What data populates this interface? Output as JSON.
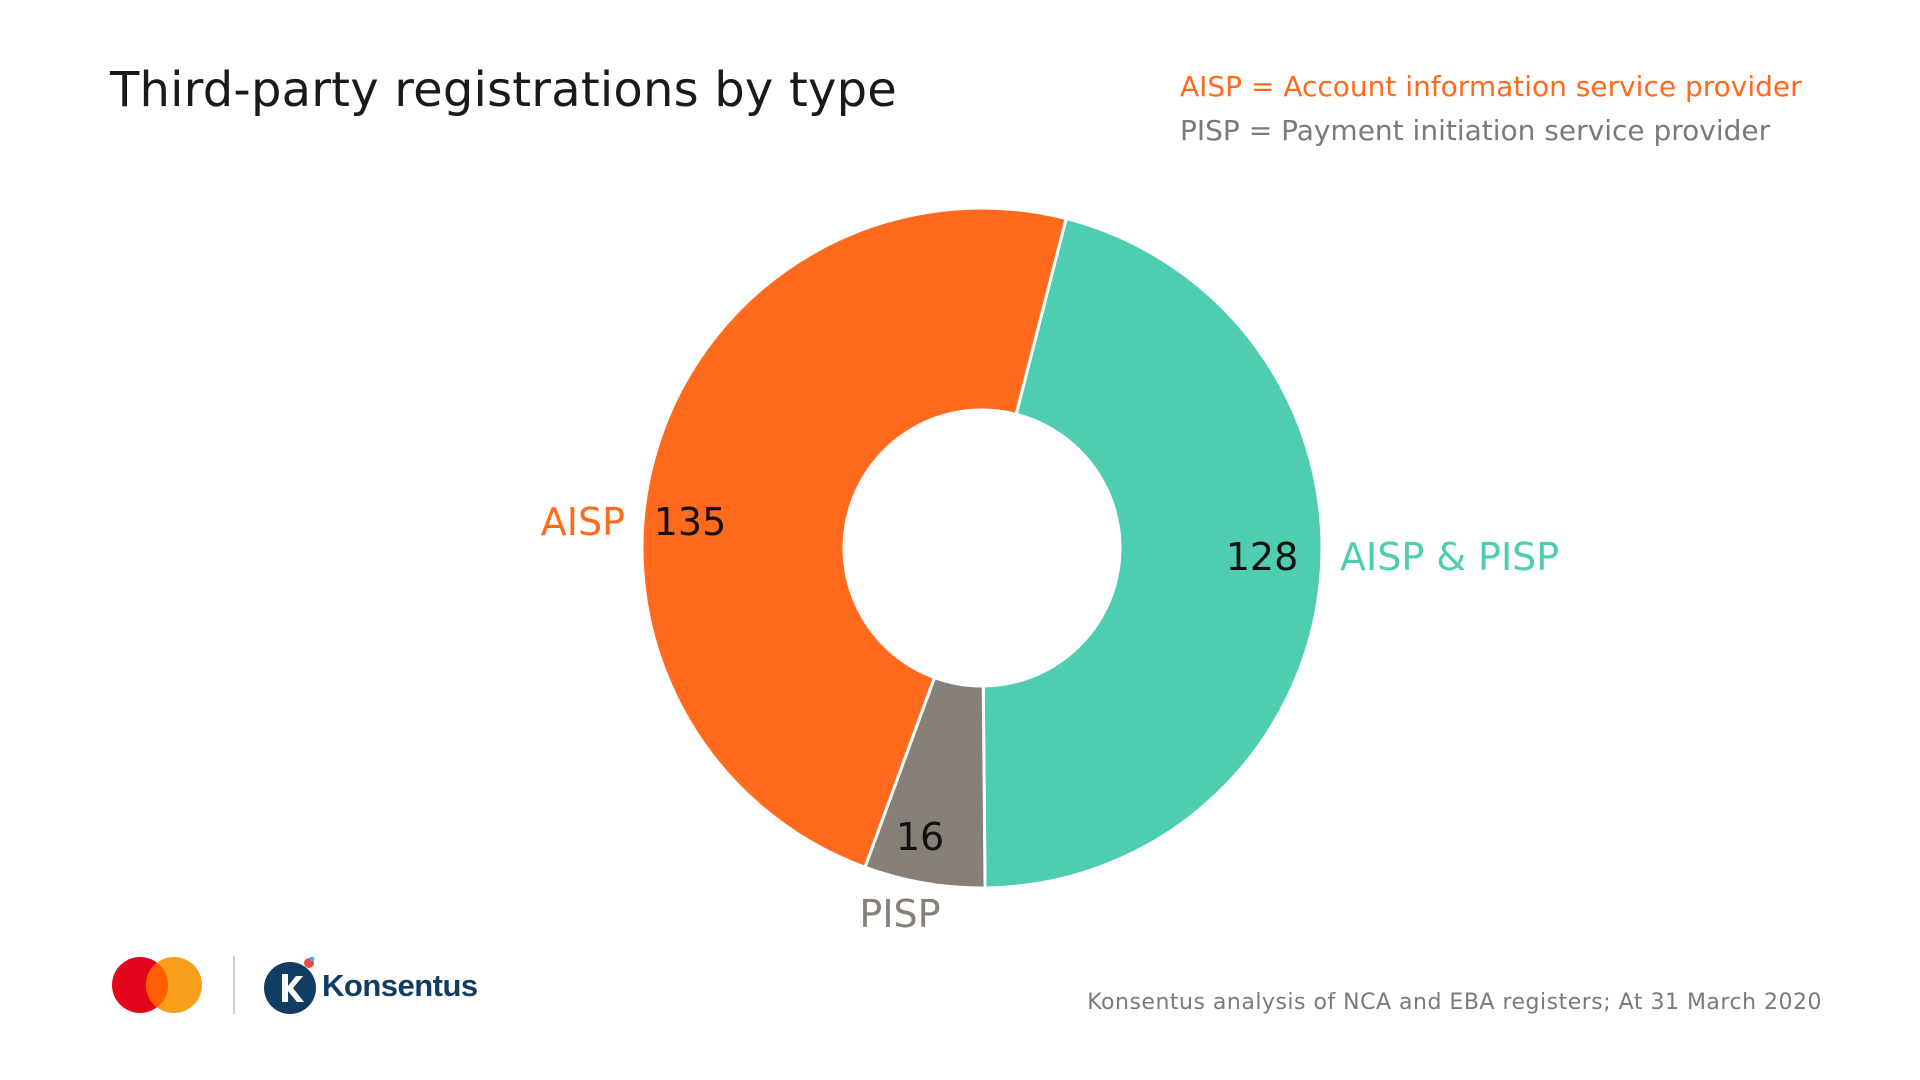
{
  "chart_data": {
    "type": "pie",
    "title": "Third-party registrations by type",
    "donut": true,
    "categories": [
      "AISP & PISP",
      "PISP",
      "AISP"
    ],
    "values": [
      128,
      16,
      135
    ],
    "colors": [
      "#4ecdb0",
      "#868079",
      "#ff6a1c"
    ],
    "legend_notes": [
      {
        "text": "AISP = Account information service provider",
        "color": "#ff6a1c"
      },
      {
        "text": "PISP = Payment initiation service provider",
        "color": "#7a7a7a"
      }
    ]
  },
  "source": "Konsentus analysis of NCA and EBA registers; At 31 March 2020",
  "logos": {
    "mastercard_icon": "mastercard-logo",
    "brand_icon": "konsentus-k-icon",
    "brand_name": "Konsentus"
  }
}
